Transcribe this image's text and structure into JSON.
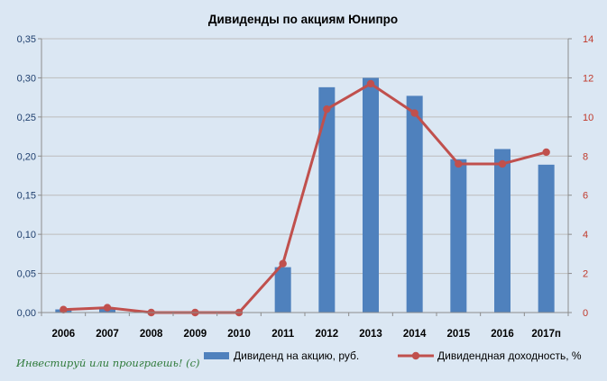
{
  "chart_data": {
    "type": "bar+line",
    "title": "Дивиденды по акциям Юнипро",
    "categories": [
      "2006",
      "2007",
      "2008",
      "2009",
      "2010",
      "2011",
      "2012",
      "2013",
      "2014",
      "2015",
      "2016",
      "2017п"
    ],
    "series": [
      {
        "name": "Дивиденд на акцию, руб.",
        "type": "bar",
        "axis": "left",
        "values": [
          0.004,
          0.005,
          0.0,
          0.0,
          0.0,
          0.058,
          0.288,
          0.3,
          0.277,
          0.196,
          0.209,
          0.189
        ]
      },
      {
        "name": "Дивидендная доходность, %",
        "type": "line",
        "axis": "right",
        "values": [
          0.15,
          0.25,
          0.0,
          0.0,
          0.0,
          2.5,
          10.4,
          11.7,
          10.2,
          7.6,
          7.6,
          8.2
        ]
      }
    ],
    "yleft": {
      "min": 0,
      "max": 0.35,
      "step": 0.05,
      "tick_labels": [
        "0,00",
        "0,05",
        "0,10",
        "0,15",
        "0,20",
        "0,25",
        "0,30",
        "0,35"
      ]
    },
    "yright": {
      "min": 0,
      "max": 14,
      "step": 2,
      "tick_labels": [
        "0",
        "2",
        "4",
        "6",
        "8",
        "10",
        "12",
        "14"
      ]
    },
    "grid": "horizontal",
    "legend_position": "bottom",
    "colors": {
      "bar": "#4f81bd",
      "line": "#c0504d",
      "left_axis_text": "#1f3f6e",
      "right_axis_text": "#c0392b",
      "background": "#dbe7f3",
      "grid": "#bcbcbc"
    }
  },
  "watermark": "Инвестируй или проиграешь! (с)"
}
